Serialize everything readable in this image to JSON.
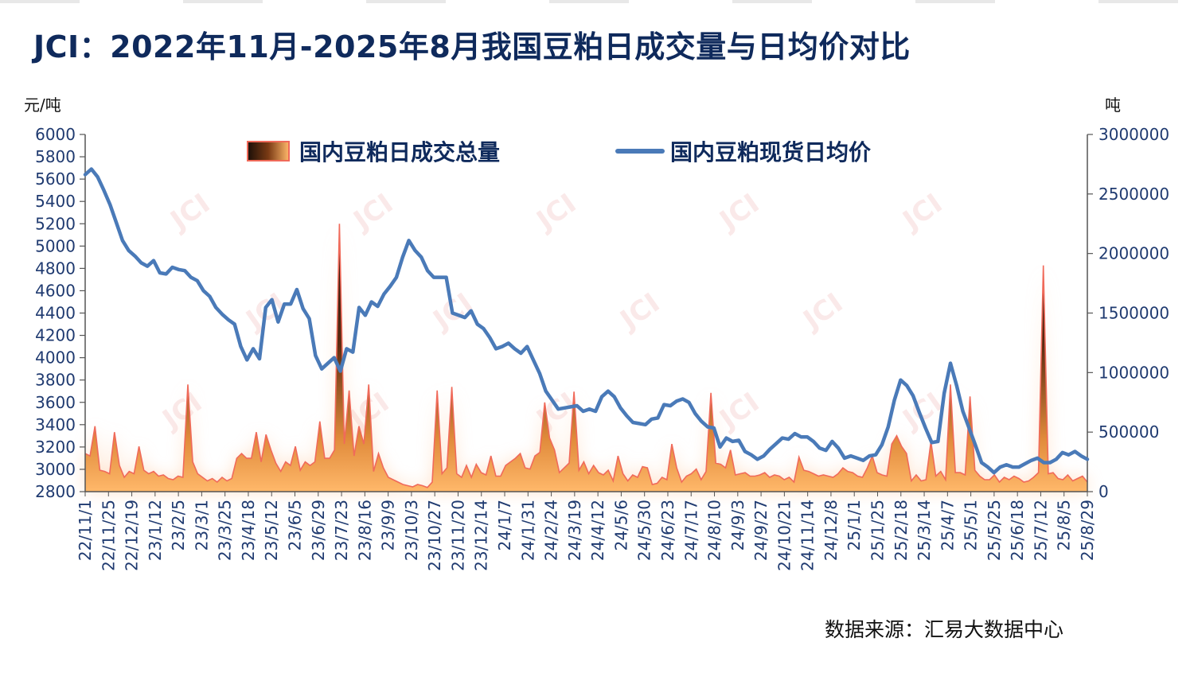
{
  "title": "JCI：2022年11月-2025年8月我国豆粕日成交量与日均价对比",
  "source": "数据来源：汇易大数据中心",
  "watermark": "JCI",
  "chart_data": {
    "type": "line+area",
    "left_axis": {
      "unit": "元/吨",
      "min": 2800,
      "max": 6000,
      "ticks": [
        2800,
        3000,
        3200,
        3400,
        3600,
        3800,
        4000,
        4200,
        4400,
        4600,
        4800,
        5000,
        5200,
        5400,
        5600,
        5800,
        6000
      ]
    },
    "right_axis": {
      "unit": "吨",
      "min": 0,
      "max": 3000000,
      "ticks": [
        0,
        500000,
        1000000,
        1500000,
        2000000,
        2500000,
        3000000
      ]
    },
    "x_ticks": [
      "22/11/1",
      "22/11/25",
      "22/12/19",
      "23/1/12",
      "23/2/5",
      "23/3/1",
      "23/3/25",
      "23/4/18",
      "23/5/12",
      "23/6/5",
      "23/6/29",
      "23/7/23",
      "23/8/16",
      "23/9/9",
      "23/10/3",
      "23/10/27",
      "23/11/20",
      "23/12/14",
      "24/1/7",
      "24/1/31",
      "24/2/24",
      "24/3/19",
      "24/4/12",
      "24/5/6",
      "24/5/30",
      "24/6/23",
      "24/7/17",
      "24/8/10",
      "24/9/3",
      "24/9/27",
      "24/10/21",
      "24/11/14",
      "24/12/8",
      "25/1/1",
      "25/1/25",
      "25/2/18",
      "25/3/14",
      "25/4/7",
      "25/5/1",
      "25/5/25",
      "25/6/18",
      "25/7/12",
      "25/8/5",
      "25/8/29"
    ],
    "legend": {
      "position": "top",
      "volume_label": "国内豆粕日成交总量",
      "price_label": "国内豆粕现货日均价"
    },
    "series": [
      {
        "name": "国内豆粕现货日均价",
        "axis": "left",
        "color": "#4a7ab8",
        "values": [
          5640,
          5690,
          5620,
          5500,
          5370,
          5210,
          5050,
          4960,
          4910,
          4850,
          4820,
          4870,
          4760,
          4750,
          4810,
          4790,
          4780,
          4720,
          4690,
          4600,
          4550,
          4450,
          4390,
          4340,
          4300,
          4100,
          3980,
          4080,
          3990,
          4450,
          4520,
          4320,
          4480,
          4480,
          4610,
          4440,
          4350,
          4020,
          3900,
          3950,
          4000,
          3880,
          4080,
          4050,
          4450,
          4380,
          4500,
          4460,
          4570,
          4640,
          4720,
          4900,
          5050,
          4960,
          4900,
          4780,
          4720,
          4720,
          4720,
          4400,
          4380,
          4360,
          4420,
          4300,
          4260,
          4180,
          4080,
          4100,
          4130,
          4080,
          4040,
          4100,
          3980,
          3860,
          3700,
          3620,
          3540,
          3550,
          3560,
          3570,
          3520,
          3540,
          3520,
          3650,
          3700,
          3650,
          3550,
          3480,
          3420,
          3410,
          3400,
          3450,
          3460,
          3580,
          3570,
          3610,
          3630,
          3600,
          3500,
          3430,
          3380,
          3370,
          3200,
          3280,
          3250,
          3260,
          3160,
          3130,
          3090,
          3120,
          3180,
          3230,
          3280,
          3270,
          3320,
          3290,
          3290,
          3250,
          3190,
          3170,
          3250,
          3190,
          3100,
          3120,
          3100,
          3080,
          3120,
          3130,
          3220,
          3380,
          3620,
          3800,
          3750,
          3660,
          3510,
          3370,
          3240,
          3250,
          3680,
          3950,
          3750,
          3520,
          3370,
          3220,
          3060,
          3020,
          2970,
          3020,
          3040,
          3020,
          3020,
          3050,
          3080,
          3100,
          3060,
          3060,
          3090,
          3150,
          3130,
          3160,
          3120,
          3090
        ]
      },
      {
        "name": "国内豆粕日成交总量",
        "axis": "right",
        "values": [
          320000,
          300000,
          550000,
          180000,
          170000,
          150000,
          500000,
          220000,
          120000,
          170000,
          150000,
          380000,
          180000,
          150000,
          170000,
          130000,
          140000,
          110000,
          100000,
          130000,
          120000,
          900000,
          250000,
          150000,
          120000,
          90000,
          110000,
          80000,
          120000,
          90000,
          110000,
          280000,
          320000,
          280000,
          280000,
          500000,
          250000,
          480000,
          350000,
          240000,
          170000,
          250000,
          220000,
          380000,
          180000,
          250000,
          220000,
          250000,
          590000,
          280000,
          280000,
          350000,
          2250000,
          400000,
          850000,
          300000,
          550000,
          400000,
          900000,
          170000,
          320000,
          200000,
          120000,
          100000,
          80000,
          60000,
          50000,
          40000,
          60000,
          50000,
          35000,
          80000,
          850000,
          150000,
          200000,
          880000,
          150000,
          120000,
          220000,
          120000,
          230000,
          160000,
          140000,
          300000,
          130000,
          130000,
          220000,
          250000,
          280000,
          320000,
          200000,
          190000,
          300000,
          330000,
          750000,
          450000,
          350000,
          160000,
          200000,
          240000,
          840000,
          180000,
          250000,
          150000,
          220000,
          160000,
          140000,
          180000,
          90000,
          300000,
          150000,
          90000,
          140000,
          120000,
          210000,
          200000,
          60000,
          70000,
          120000,
          100000,
          400000,
          200000,
          80000,
          130000,
          150000,
          190000,
          100000,
          170000,
          830000,
          240000,
          230000,
          200000,
          350000,
          140000,
          150000,
          160000,
          130000,
          130000,
          140000,
          160000,
          120000,
          140000,
          130000,
          100000,
          120000,
          80000,
          290000,
          180000,
          170000,
          150000,
          130000,
          140000,
          130000,
          120000,
          150000,
          200000,
          170000,
          160000,
          130000,
          120000,
          200000,
          300000,
          160000,
          140000,
          130000,
          400000,
          470000,
          380000,
          320000,
          90000,
          140000,
          90000,
          100000,
          420000,
          130000,
          170000,
          100000,
          900000,
          160000,
          160000,
          140000,
          800000,
          180000,
          130000,
          100000,
          100000,
          140000,
          80000,
          120000,
          100000,
          130000,
          110000,
          80000,
          90000,
          120000,
          160000,
          1900000,
          150000,
          160000,
          110000,
          100000,
          140000,
          90000,
          110000,
          130000,
          80000
        ]
      }
    ]
  }
}
